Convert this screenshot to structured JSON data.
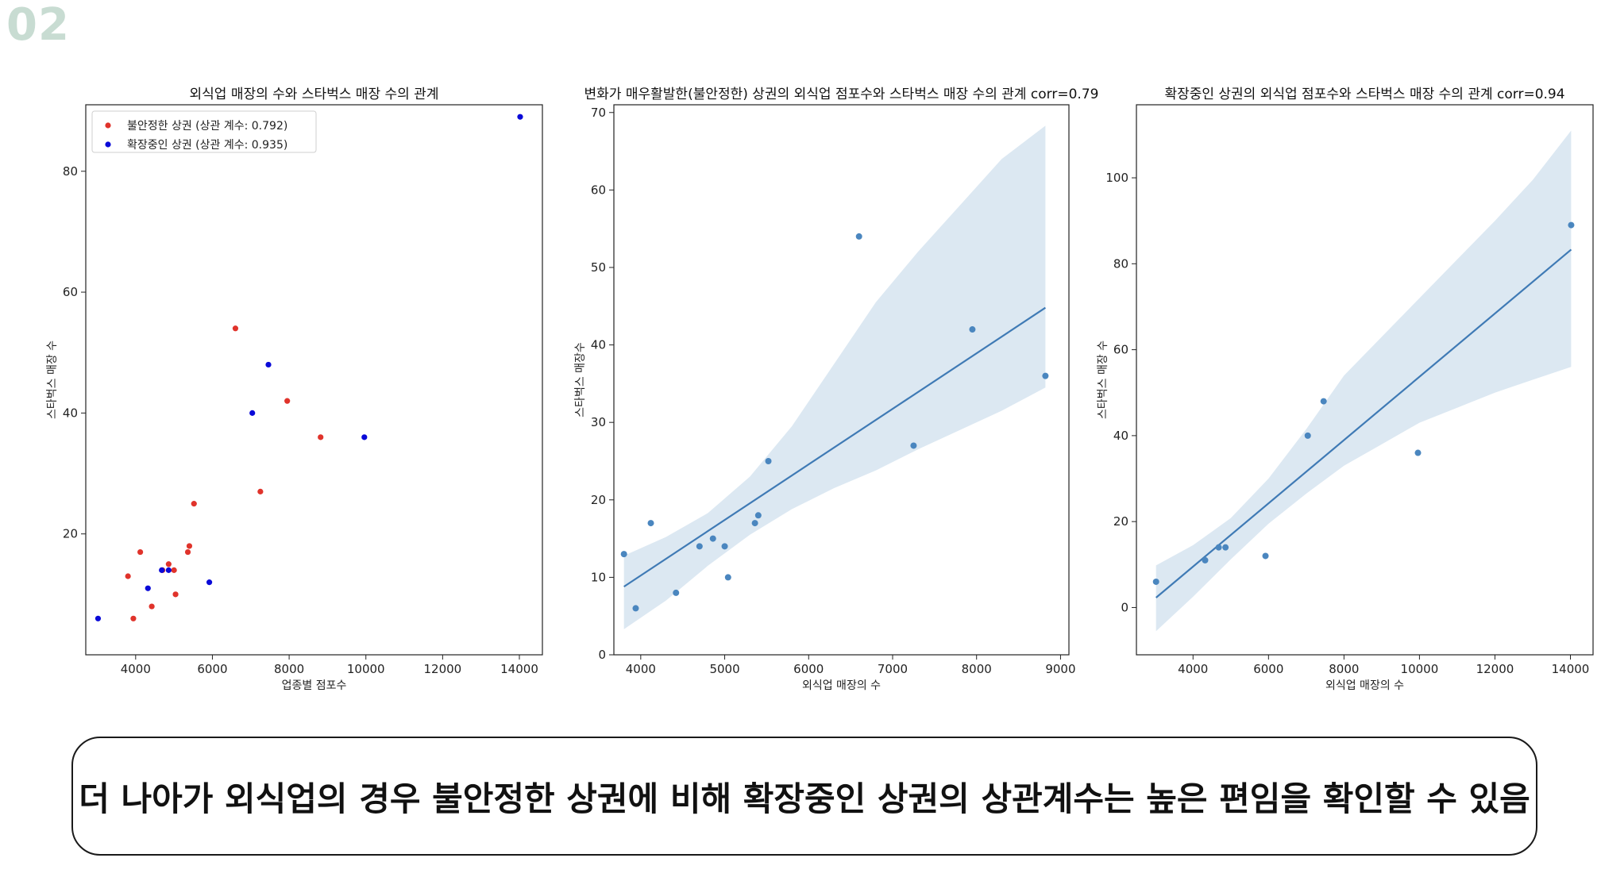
{
  "slide_number": "02",
  "summary": "더 나아가 외식업의 경우 불안정한 상권에 비해 확장중인 상권의 상관계수는 높은 편임을 확인할 수 있음",
  "colors": {
    "unstable": "#e0332b",
    "expanding": "#0a0ad8",
    "reg_point": "#4a86bf",
    "reg_line": "#3f7ab5",
    "band": "#dce8f2",
    "slide_number": "#c8dcd2"
  },
  "chart_data": [
    {
      "type": "scatter",
      "title": "외식업 매장의 수와 스타벅스 매장 수의 관계",
      "xlabel": "업종별 점포수",
      "ylabel": "스타벅스 매장 수",
      "xlim": [
        2700,
        14600
      ],
      "ylim": [
        0,
        91
      ],
      "xticks": [
        4000,
        6000,
        8000,
        10000,
        12000,
        14000
      ],
      "yticks": [
        20,
        40,
        60,
        80
      ],
      "legend_position": "upper-left",
      "series": [
        {
          "name": "불안정한 상권 (상관 계수: 0.792)",
          "color": "#e0332b",
          "points": [
            [
              3800,
              13
            ],
            [
              3940,
              6
            ],
            [
              4120,
              17
            ],
            [
              4420,
              8
            ],
            [
              4700,
              14
            ],
            [
              4860,
              15
            ],
            [
              5000,
              14
            ],
            [
              5040,
              10
            ],
            [
              5360,
              17
            ],
            [
              5400,
              18
            ],
            [
              5520,
              25
            ],
            [
              6600,
              54
            ],
            [
              7250,
              27
            ],
            [
              7950,
              42
            ],
            [
              8820,
              36
            ]
          ]
        },
        {
          "name": "확장중인 상권 (상관 계수: 0.935)",
          "color": "#0a0ad8",
          "points": [
            [
              3020,
              6
            ],
            [
              4320,
              11
            ],
            [
              4680,
              14
            ],
            [
              4860,
              14
            ],
            [
              5920,
              12
            ],
            [
              7040,
              40
            ],
            [
              7460,
              48
            ],
            [
              9960,
              36
            ],
            [
              14020,
              89
            ]
          ]
        }
      ]
    },
    {
      "type": "scatter",
      "title": "변화가 매우활발한(불안정한) 상권의 외식업 점포수와 스타벅스 매장 수의 관계 corr=0.79",
      "xlabel": "외식업 매장의 수",
      "ylabel": "스타벅스 매장수",
      "xlim": [
        3680,
        9100
      ],
      "ylim": [
        0,
        71
      ],
      "xticks": [
        4000,
        5000,
        6000,
        7000,
        8000,
        9000
      ],
      "yticks": [
        0,
        10,
        20,
        30,
        40,
        50,
        60,
        70
      ],
      "points": [
        [
          3800,
          13
        ],
        [
          3940,
          6
        ],
        [
          4120,
          17
        ],
        [
          4420,
          8
        ],
        [
          4700,
          14
        ],
        [
          4860,
          15
        ],
        [
          5000,
          14
        ],
        [
          5040,
          10
        ],
        [
          5360,
          17
        ],
        [
          5400,
          18
        ],
        [
          5520,
          25
        ],
        [
          6600,
          54
        ],
        [
          7250,
          27
        ],
        [
          7950,
          42
        ],
        [
          8820,
          36
        ]
      ],
      "regression": {
        "x": [
          3800,
          8820
        ],
        "y": [
          8.8,
          44.8
        ]
      },
      "confidence_band": {
        "x": [
          3800,
          4300,
          4800,
          5300,
          5800,
          6300,
          6800,
          7300,
          7800,
          8300,
          8820
        ],
        "upper": [
          12.8,
          15.2,
          18.3,
          23.0,
          29.5,
          37.5,
          45.5,
          52.0,
          58.0,
          64.0,
          68.3
        ],
        "lower": [
          3.3,
          7.0,
          11.5,
          15.5,
          18.8,
          21.5,
          23.8,
          26.5,
          29.0,
          31.5,
          34.5
        ]
      }
    },
    {
      "type": "scatter",
      "title": "확장중인 상권의 외식업 점포수와 스타벅스 매장 수의 관계 corr=0.94",
      "xlabel": "외식업 매장의 수",
      "ylabel": "스타벅스 매장 수",
      "xlim": [
        2500,
        14600
      ],
      "ylim": [
        -11,
        117
      ],
      "xticks": [
        4000,
        6000,
        8000,
        10000,
        12000,
        14000
      ],
      "yticks": [
        0,
        20,
        40,
        60,
        80,
        100
      ],
      "points": [
        [
          3020,
          6
        ],
        [
          4320,
          11
        ],
        [
          4680,
          14
        ],
        [
          4860,
          14
        ],
        [
          5920,
          12
        ],
        [
          7040,
          40
        ],
        [
          7460,
          48
        ],
        [
          9960,
          36
        ],
        [
          14020,
          89
        ]
      ],
      "regression": {
        "x": [
          3020,
          14020
        ],
        "y": [
          2.3,
          83.3
        ]
      },
      "confidence_band": {
        "x": [
          3020,
          4000,
          5000,
          6000,
          7000,
          8000,
          9000,
          10000,
          11000,
          12000,
          13000,
          14020
        ],
        "upper": [
          9.8,
          14.5,
          20.8,
          30.0,
          41.5,
          54.0,
          63.0,
          72.0,
          81.0,
          90.0,
          99.5,
          111.0
        ],
        "lower": [
          -5.5,
          2.5,
          11.2,
          19.5,
          26.5,
          33.0,
          38.0,
          43.0,
          46.5,
          50.0,
          53.0,
          56.0
        ]
      }
    }
  ]
}
